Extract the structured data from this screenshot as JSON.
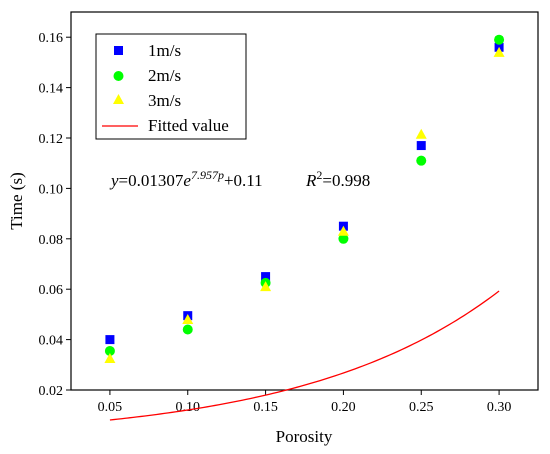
{
  "chart_data": {
    "type": "scatter",
    "xlabel": "Porosity",
    "ylabel": "Time (s)",
    "xlim": [
      0.025,
      0.325
    ],
    "ylim": [
      0.02,
      0.17
    ],
    "x_ticks": [
      "0.05",
      "0.10",
      "0.15",
      "0.20",
      "0.25",
      "0.30"
    ],
    "y_ticks": [
      "0.02",
      "0.04",
      "0.06",
      "0.08",
      "0.10",
      "0.12",
      "0.14",
      "0.16"
    ],
    "legend_position": "top-left",
    "series": [
      {
        "name": "1m/s",
        "marker": "square",
        "color": "#0000ff",
        "points": [
          [
            0.05,
            0.04
          ],
          [
            0.1,
            0.0495
          ],
          [
            0.15,
            0.065
          ],
          [
            0.2,
            0.085
          ],
          [
            0.25,
            0.117
          ],
          [
            0.3,
            0.156
          ]
        ]
      },
      {
        "name": "2m/s",
        "marker": "circle",
        "color": "#00ff00",
        "points": [
          [
            0.05,
            0.0355
          ],
          [
            0.1,
            0.044
          ],
          [
            0.15,
            0.0625
          ],
          [
            0.2,
            0.08
          ],
          [
            0.25,
            0.111
          ],
          [
            0.3,
            0.159
          ]
        ]
      },
      {
        "name": "3m/s",
        "marker": "triangle",
        "color": "#ffff00",
        "points": [
          [
            0.05,
            0.0325
          ],
          [
            0.1,
            0.048
          ],
          [
            0.15,
            0.061
          ],
          [
            0.2,
            0.083
          ],
          [
            0.25,
            0.1215
          ],
          [
            0.3,
            0.154
          ]
        ]
      },
      {
        "name": "Fitted value",
        "marker": "line",
        "color": "#ff0000",
        "model": {
          "a": 0.01307,
          "b": 7.957,
          "c": 0.11
        },
        "x_range": [
          0.05,
          0.3
        ]
      }
    ],
    "annotation": {
      "prefix": "y",
      "eq_main": "=0.01307",
      "eq_e": "e",
      "eq_exp": "7.957p",
      "eq_tail": "+0.11",
      "r2_prefix": "R",
      "r2_sup": "2",
      "r2_value": "=0.998"
    }
  }
}
